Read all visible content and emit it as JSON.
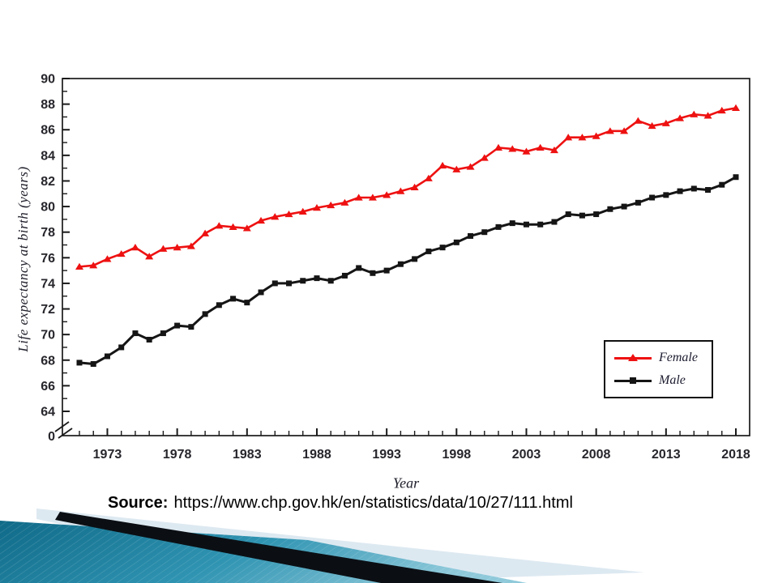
{
  "slide": {
    "source_label": "Source:",
    "source_url": "https://www.chp.gov.hk/en/statistics/data/10/27/111.html"
  },
  "chart_data": {
    "type": "line",
    "title": "",
    "xlabel": "Year",
    "ylabel": "Life expectancy at birth (years)",
    "grid": false,
    "legend_position": "lower right",
    "ylim": [
      64,
      90
    ],
    "y_axis_break_label": "0",
    "y_ticks": [
      "90",
      "88",
      "86",
      "84",
      "82",
      "80",
      "78",
      "76",
      "74",
      "72",
      "70",
      "68",
      "66",
      "64"
    ],
    "x_ticks": [
      "1973",
      "1978",
      "1983",
      "1988",
      "1993",
      "1998",
      "2003",
      "2008",
      "2013",
      "2018"
    ],
    "years": [
      1971,
      1972,
      1973,
      1974,
      1975,
      1976,
      1977,
      1978,
      1979,
      1980,
      1981,
      1982,
      1983,
      1984,
      1985,
      1986,
      1987,
      1988,
      1989,
      1990,
      1991,
      1992,
      1993,
      1994,
      1995,
      1996,
      1997,
      1998,
      1999,
      2000,
      2001,
      2002,
      2003,
      2004,
      2005,
      2006,
      2007,
      2008,
      2009,
      2010,
      2011,
      2012,
      2013,
      2014,
      2015,
      2016,
      2017,
      2018
    ],
    "series": [
      {
        "name": "Female",
        "color": "#ee1111",
        "marker": "triangle",
        "values": [
          75.3,
          75.4,
          75.9,
          76.3,
          76.8,
          76.1,
          76.7,
          76.8,
          76.9,
          77.9,
          78.5,
          78.4,
          78.3,
          78.9,
          79.2,
          79.4,
          79.6,
          79.9,
          80.1,
          80.3,
          80.7,
          80.7,
          80.9,
          81.2,
          81.5,
          82.2,
          83.2,
          82.9,
          83.1,
          83.8,
          84.6,
          84.5,
          84.3,
          84.6,
          84.4,
          85.4,
          85.4,
          85.5,
          85.9,
          85.9,
          86.7,
          86.3,
          86.5,
          86.9,
          87.2,
          87.1,
          87.5,
          87.7
        ]
      },
      {
        "name": "Male",
        "color": "#151515",
        "marker": "square",
        "values": [
          67.8,
          67.7,
          68.3,
          69.0,
          70.1,
          69.6,
          70.1,
          70.7,
          70.6,
          71.6,
          72.3,
          72.8,
          72.5,
          73.3,
          74.0,
          74.0,
          74.2,
          74.4,
          74.2,
          74.6,
          75.2,
          74.8,
          75.0,
          75.5,
          75.9,
          76.5,
          76.8,
          77.2,
          77.7,
          78.0,
          78.4,
          78.7,
          78.6,
          78.6,
          78.8,
          79.4,
          79.3,
          79.4,
          79.8,
          80.0,
          80.3,
          80.7,
          80.9,
          81.2,
          81.4,
          81.3,
          81.7,
          82.3
        ]
      }
    ]
  },
  "decoration": {
    "teal_dark": "#0f6a88",
    "teal_mid": "#2f94b2",
    "teal_light": "#8ec9da",
    "pale_blue": "#dde9f1",
    "black_band": "#0b0f14"
  }
}
